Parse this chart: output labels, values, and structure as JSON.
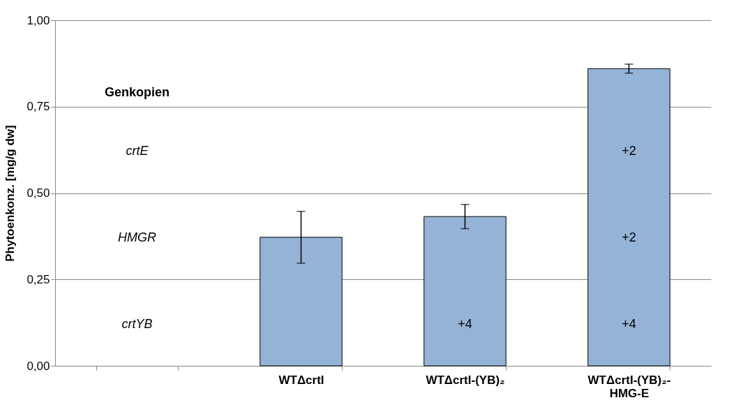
{
  "chart_data": {
    "type": "bar",
    "ylabel": "Phytoenkonz. [mg/g dw]",
    "categories": [
      null,
      "WTΔcrtI",
      "WTΔcrtI-(YB)₂",
      "WTΔcrtI-(YB)₂-HMG-E"
    ],
    "values": [
      null,
      0.372,
      0.432,
      0.86
    ],
    "errors": [
      null,
      0.075,
      0.035,
      0.013
    ],
    "color": "#95b3d7",
    "ylim": [
      0,
      1
    ],
    "yticks": [
      {
        "value": 0,
        "label": "0,00"
      },
      {
        "value": 0.25,
        "label": "0,25"
      },
      {
        "value": 0.5,
        "label": "0,50"
      },
      {
        "value": 0.75,
        "label": "0,75"
      },
      {
        "value": 1,
        "label": "1,00"
      }
    ],
    "grid": "y",
    "annotations": [
      "Genkopien",
      "crtE",
      "HMGR",
      "crtYB",
      "+2",
      "+2",
      "+4",
      "+4"
    ]
  }
}
